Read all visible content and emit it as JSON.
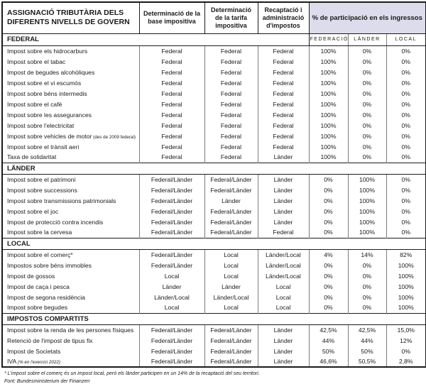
{
  "colors": {
    "participation_header_bg": "#dcdcec",
    "border_dark": "#1a1a1a",
    "border_gray": "#7d7d7d"
  },
  "table": {
    "title": "ASSIGNACIÓ TRIBUTÀRIA DELS DIFERENTS NIVELLS DE GOVERN",
    "columns": {
      "base": "Determinació de la base impositiva",
      "tarifa": "Determinació de la tarifa impositiva",
      "recaptacio": "Recaptació i administració d'impostos"
    },
    "participation_header": "% de participació en els ingressos",
    "participation_subcolumns": [
      "FEDERACIÓ",
      "LÄNDER",
      "LOCAL"
    ],
    "sections": [
      {
        "label": "FEDERAL",
        "rows": [
          {
            "name": "Impost sobre els hidrocarburs",
            "base": "Federal",
            "tarifa": "Federal",
            "recaptacio": "Federal",
            "federacio": "100%",
            "lander": "0%",
            "local": "0%"
          },
          {
            "name": "Impost sobre el tabac",
            "base": "Federal",
            "tarifa": "Federal",
            "recaptacio": "Federal",
            "federacio": "100%",
            "lander": "0%",
            "local": "0%"
          },
          {
            "name": "Impost de begudes alcohòliques",
            "base": "Federal",
            "tarifa": "Federal",
            "recaptacio": "Federal",
            "federacio": "100%",
            "lander": "0%",
            "local": "0%"
          },
          {
            "name": "Impost sobre el vi escumós",
            "base": "Federal",
            "tarifa": "Federal",
            "recaptacio": "Federal",
            "federacio": "100%",
            "lander": "0%",
            "local": "0%"
          },
          {
            "name": "Impost sobre béns intermedis",
            "base": "Federal",
            "tarifa": "Federal",
            "recaptacio": "Federal",
            "federacio": "100%",
            "lander": "0%",
            "local": "0%"
          },
          {
            "name": "Impost sobre el cafè",
            "base": "Federal",
            "tarifa": "Federal",
            "recaptacio": "Federal",
            "federacio": "100%",
            "lander": "0%",
            "local": "0%"
          },
          {
            "name": "Impost sobre les assegurances",
            "base": "Federal",
            "tarifa": "Federal",
            "recaptacio": "Federal",
            "federacio": "100%",
            "lander": "0%",
            "local": "0%"
          },
          {
            "name": "Impost sobre l'electricitat",
            "base": "Federal",
            "tarifa": "Federal",
            "recaptacio": "Federal",
            "federacio": "100%",
            "lander": "0%",
            "local": "0%"
          },
          {
            "name": "Impost sobre vehicles de motor",
            "note": "(des de 2009 federal)",
            "base": "Federal",
            "tarifa": "Federal",
            "recaptacio": "Federal",
            "federacio": "100%",
            "lander": "0%",
            "local": "0%"
          },
          {
            "name": "Impost sobre el trànsit aeri",
            "base": "Federal",
            "tarifa": "Federal",
            "recaptacio": "Federal",
            "federacio": "100%",
            "lander": "0%",
            "local": "0%"
          },
          {
            "name": "Taxa de solidaritat",
            "base": "Federal",
            "tarifa": "Federal",
            "recaptacio": "Länder",
            "federacio": "100%",
            "lander": "0%",
            "local": "0%"
          }
        ]
      },
      {
        "label": "LÄNDER",
        "rows": [
          {
            "name": "Impost sobre el patrimoni",
            "base": "Federal/Länder",
            "tarifa": "Federal/Länder",
            "recaptacio": "Länder",
            "federacio": "0%",
            "lander": "100%",
            "local": "0%"
          },
          {
            "name": "Impost sobre successions",
            "base": "Federal/Länder",
            "tarifa": "Federal/Länder",
            "recaptacio": "Länder",
            "federacio": "0%",
            "lander": "100%",
            "local": "0%"
          },
          {
            "name": "Impost sobre transmissions patrimonials",
            "base": "Federal/Länder",
            "tarifa": "Länder",
            "recaptacio": "Länder",
            "federacio": "0%",
            "lander": "100%",
            "local": "0%"
          },
          {
            "name": "Impost sobre el joc",
            "base": "Federal/Länder",
            "tarifa": "Federal/Länder",
            "recaptacio": "Länder",
            "federacio": "0%",
            "lander": "100%",
            "local": "0%"
          },
          {
            "name": "Impost de protecció contra incendis",
            "base": "Federal/Länder",
            "tarifa": "Federal/Länder",
            "recaptacio": "Länder",
            "federacio": "0%",
            "lander": "100%",
            "local": "0%"
          },
          {
            "name": "Impost sobre la cervesa",
            "base": "Federal/Länder",
            "tarifa": "Federal/Länder",
            "recaptacio": "Federal",
            "federacio": "0%",
            "lander": "100%",
            "local": "0%"
          }
        ]
      },
      {
        "label": "LOCAL",
        "rows": [
          {
            "name": "Impost sobre el comerç*",
            "base": "Federal/Länder",
            "tarifa": "Local",
            "recaptacio": "Länder/Local",
            "federacio": "4%",
            "lander": "14%",
            "local": "82%"
          },
          {
            "name": "Impostos sobre béns immobles",
            "base": "Federal/Länder",
            "tarifa": "Local",
            "recaptacio": "Länder/Local",
            "federacio": "0%",
            "lander": "0%",
            "local": "100%"
          },
          {
            "name": "Impost de gossos",
            "base": "Local",
            "tarifa": "Local",
            "recaptacio": "Länder/Local",
            "federacio": "0%",
            "lander": "0%",
            "local": "100%"
          },
          {
            "name": "Impost de caça i pesca",
            "base": "Länder",
            "tarifa": "Länder",
            "recaptacio": "Local",
            "federacio": "0%",
            "lander": "0%",
            "local": "100%"
          },
          {
            "name": "Impost de segona residència",
            "base": "Länder/Local",
            "tarifa": "Länder/Local",
            "recaptacio": "Local",
            "federacio": "0%",
            "lander": "0%",
            "local": "100%"
          },
          {
            "name": "Impost sobre begudes",
            "base": "Local",
            "tarifa": "Local",
            "recaptacio": "Local",
            "federacio": "0%",
            "lander": "0%",
            "local": "100%"
          }
        ]
      },
      {
        "label": "IMPOSTOS COMPARTITS",
        "rows": [
          {
            "name": "Impost sobre la renda de les persones físiques",
            "base": "Federal/Länder",
            "tarifa": "Federal/Länder",
            "recaptacio": "Länder",
            "federacio": "42,5%",
            "lander": "42,5%",
            "local": "15,0%"
          },
          {
            "name": "Retenció de l'impost de tipus fix",
            "base": "Federal/Länder",
            "tarifa": "Federal/Länder",
            "recaptacio": "Länder",
            "federacio": "44%",
            "lander": "44%",
            "local": "12%"
          },
          {
            "name": "Impost de Societats",
            "base": "Federal/Länder",
            "tarifa": "Federal/Länder",
            "recaptacio": "Länder",
            "federacio": "50%",
            "lander": "50%",
            "local": "0%"
          },
          {
            "name": "IVA",
            "note": "(% en l'exercici 2022)",
            "note_italic": true,
            "base": "Federal/Länder",
            "tarifa": "Federal/Länder",
            "recaptacio": "Länder",
            "federacio": "46,6%",
            "lander": "50,5%",
            "local": "2,8%"
          }
        ]
      }
    ]
  },
  "footnotes": {
    "asterisk": "* L'impost sobre el comerç és un impost local, però els länder participen en un 14% de la recaptació del seu territori.",
    "source": "Font: Bundesministerium der Finanzen"
  }
}
